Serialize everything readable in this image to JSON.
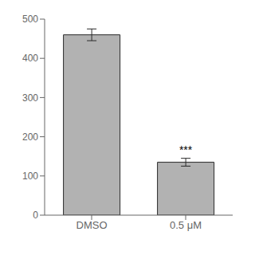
{
  "chart_data": {
    "type": "bar",
    "categories": [
      "DMSO",
      "0.5 μM"
    ],
    "values": [
      460,
      135
    ],
    "errors": [
      15,
      10
    ],
    "color": "#b2b2b2",
    "ylim": [
      0,
      500
    ],
    "yticks": [
      0,
      100,
      200,
      300,
      400,
      500
    ],
    "annotations": [
      {
        "category": "0.5 μM",
        "text": "***"
      }
    ]
  }
}
